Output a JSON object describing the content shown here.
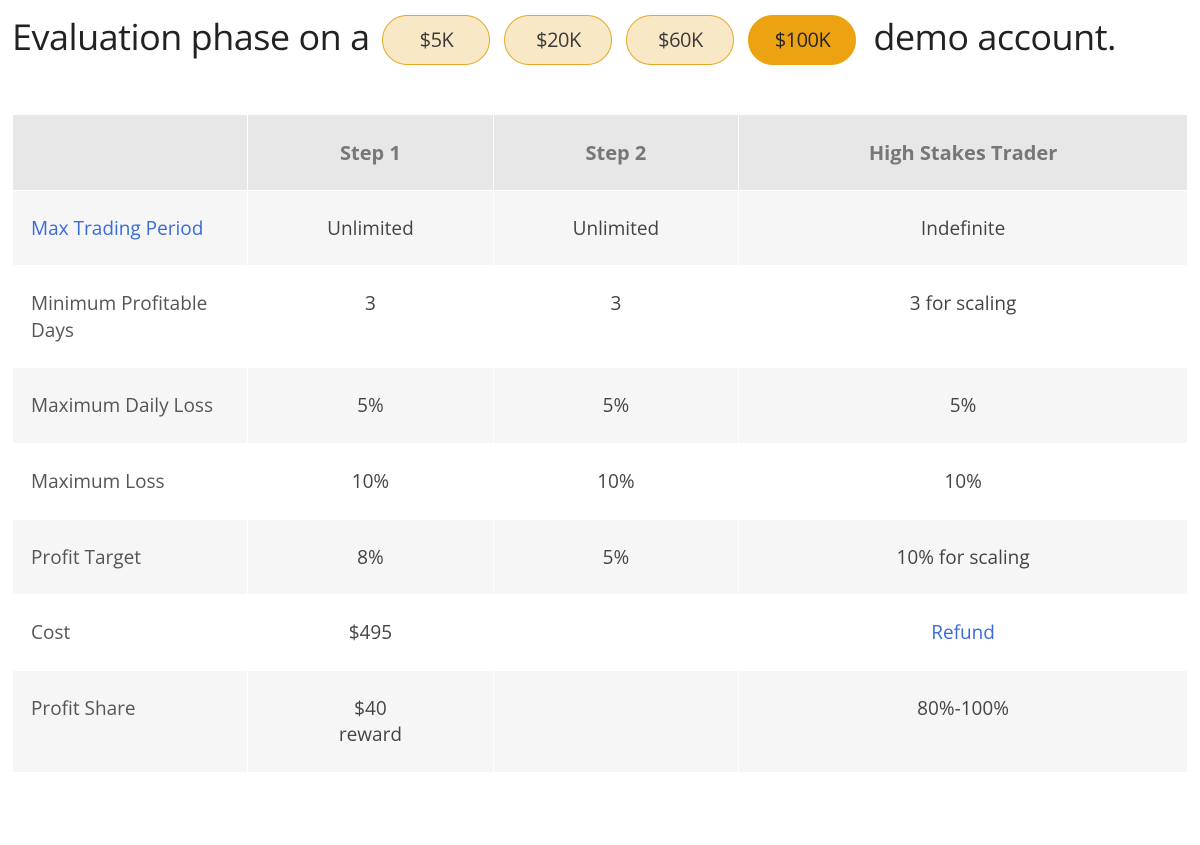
{
  "heading": {
    "prefix": "Evaluation phase on a",
    "suffix": "demo account."
  },
  "account_options": {
    "pills": [
      {
        "label": "$5K",
        "active": false
      },
      {
        "label": "$20K",
        "active": false
      },
      {
        "label": "$60K",
        "active": false
      },
      {
        "label": "$100K",
        "active": true
      }
    ],
    "colors": {
      "inactive_bg": "#f9e8c5",
      "inactive_border": "#e6a826",
      "inactive_text": "#3a3a3a",
      "active_bg": "#eda311",
      "active_border": "#eda311",
      "active_text": "#252525"
    }
  },
  "table": {
    "type": "table",
    "header_bg": "#e7e7e7",
    "header_text_color": "#777777",
    "row_shaded_bg": "#f6f6f6",
    "row_plain_bg": "#ffffff",
    "link_color": "#3a6bd9",
    "body_text_color": "#444444",
    "rowhead_text_color": "#555555",
    "font_size_body": 19,
    "font_size_header": 20,
    "columns": [
      {
        "label": "",
        "width_pct": 20
      },
      {
        "label": "Step 1",
        "width_pct": 26
      },
      {
        "label": "Step 2",
        "width_pct": 27
      },
      {
        "label": "High Stakes Trader",
        "width_pct": 27
      }
    ],
    "rows": [
      {
        "shaded": true,
        "label": "Max Trading Period",
        "label_link": true,
        "cells": [
          "Unlimited",
          "Unlimited",
          "Indefinite"
        ]
      },
      {
        "shaded": false,
        "label": "Minimum Profitable Days",
        "label_link": false,
        "cells": [
          "3",
          "3",
          "3 for scaling"
        ]
      },
      {
        "shaded": true,
        "label": "Maximum Daily Loss",
        "label_link": false,
        "cells": [
          "5%",
          "5%",
          "5%"
        ]
      },
      {
        "shaded": false,
        "label": "Maximum Loss",
        "label_link": false,
        "cells": [
          "10%",
          "10%",
          "10%"
        ]
      },
      {
        "shaded": true,
        "label": "Profit Target",
        "label_link": false,
        "cells": [
          "8%",
          "5%",
          "10% for scaling"
        ]
      },
      {
        "shaded": false,
        "label": "Cost",
        "label_link": false,
        "cells": [
          "$495",
          "",
          {
            "text": "Refund",
            "link": true
          }
        ]
      },
      {
        "shaded": true,
        "label": "Profit Share",
        "label_link": false,
        "cells": [
          "$40\nreward",
          "",
          "80%-100%"
        ]
      }
    ]
  }
}
